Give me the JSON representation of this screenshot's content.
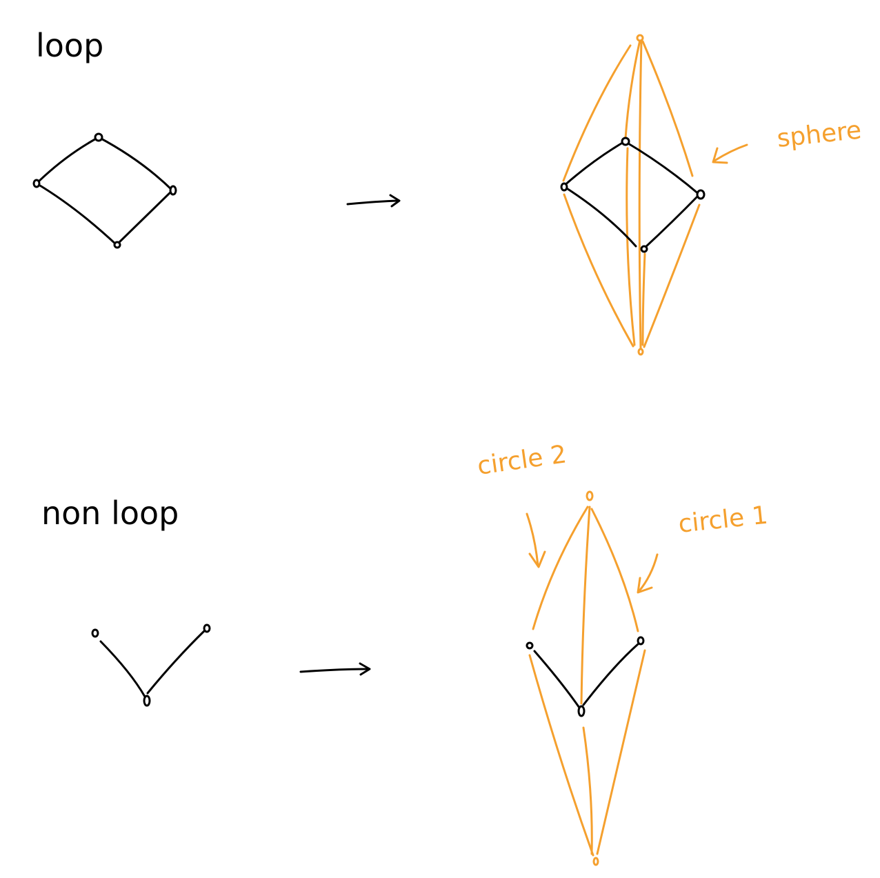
{
  "labels": {
    "loop": "loop",
    "non_loop": "non loop",
    "sphere": "sphere",
    "circle_2": "circle 2",
    "circle_1": "circle 1"
  },
  "colors": {
    "ink": "#000000",
    "highlight": "#f5a02e"
  }
}
